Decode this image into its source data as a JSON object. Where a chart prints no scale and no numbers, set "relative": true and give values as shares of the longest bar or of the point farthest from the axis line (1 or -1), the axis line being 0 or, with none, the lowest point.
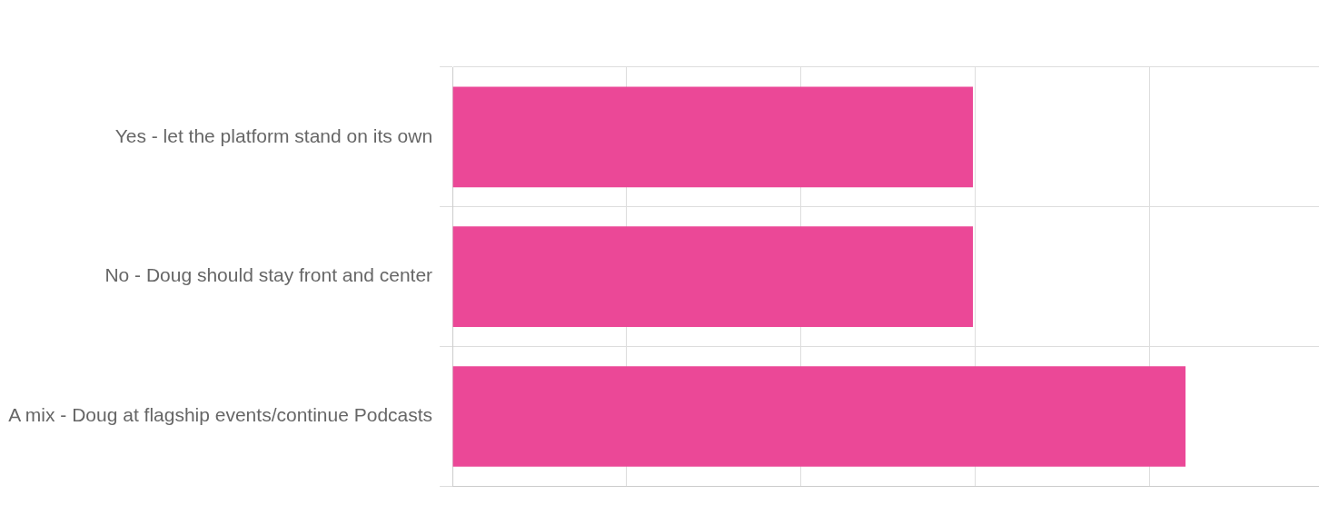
{
  "chart_data": {
    "type": "bar",
    "orientation": "horizontal",
    "relative": true,
    "grid": true,
    "legend": false,
    "categories": [
      "Yes - let the platform stand on its own",
      "No - Doug should stay front and center",
      "A mix - Doug at flagship events/continue Podcasts"
    ],
    "values": [
      0.71,
      0.71,
      1
    ],
    "color": "#eb4897"
  }
}
